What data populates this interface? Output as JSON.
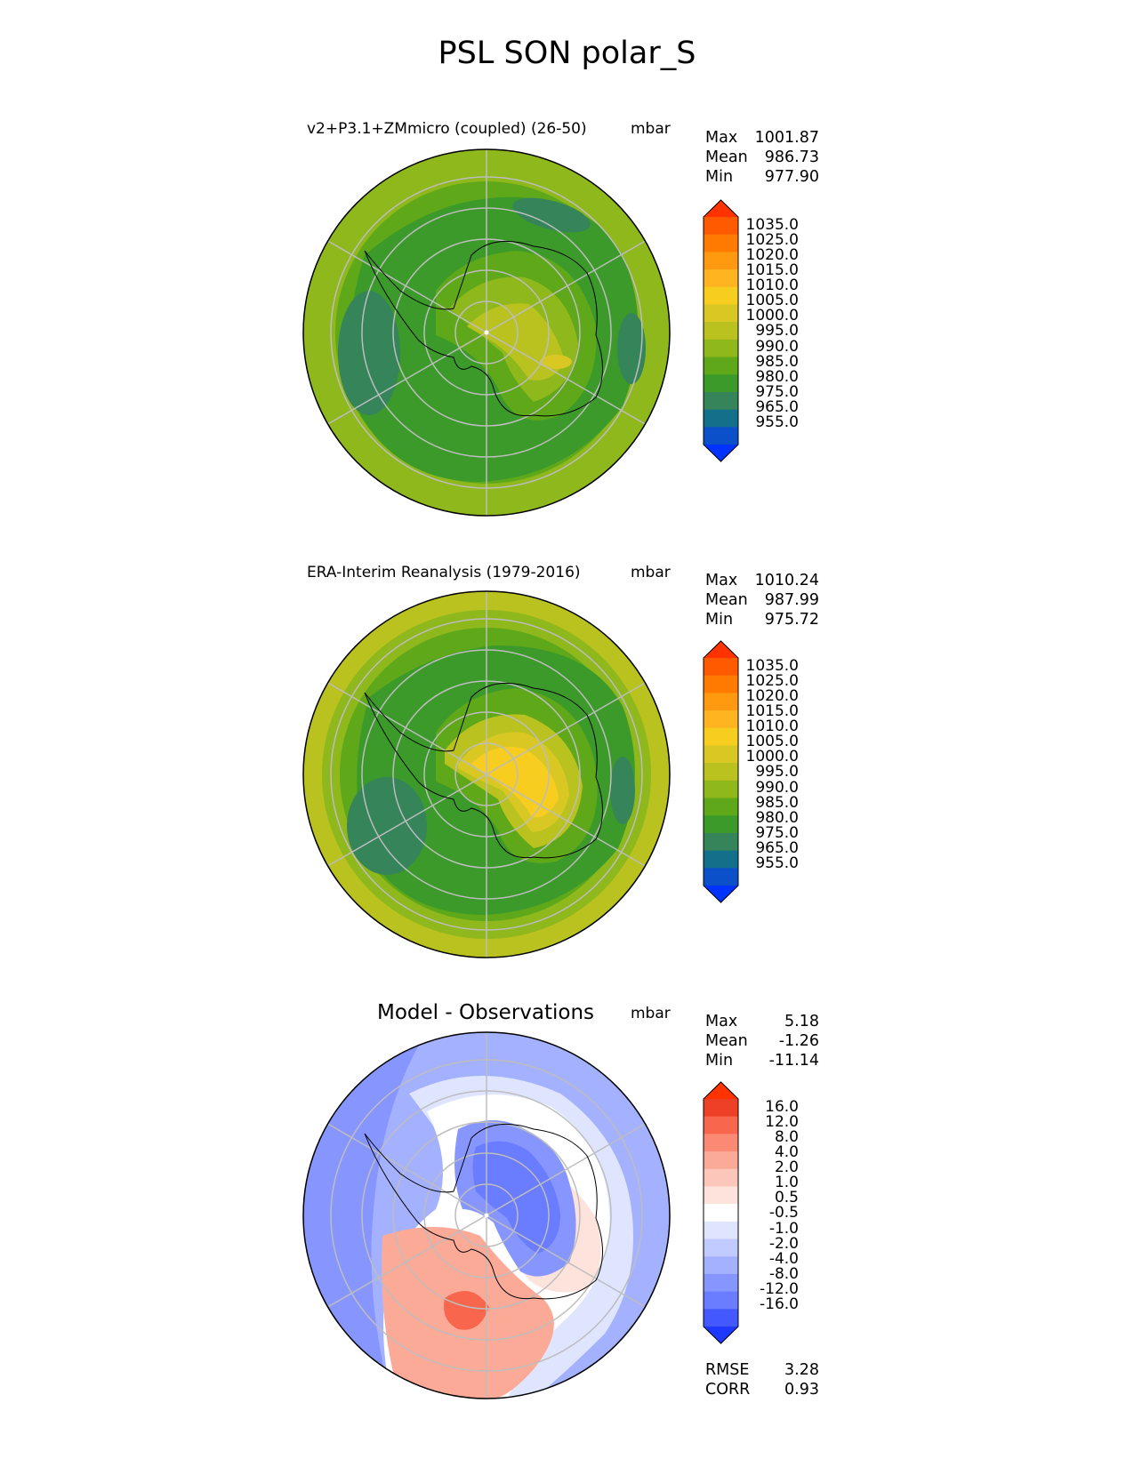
{
  "figure": {
    "title": "PSL SON polar_S"
  },
  "panels": [
    {
      "title": "v2+P3.1+ZMmicro (coupled) (26-50)",
      "units": "mbar",
      "stats": {
        "max_label": "Max",
        "max": "1001.87",
        "mean_label": "Mean",
        "mean": "986.73",
        "min_label": "Min",
        "min": "977.90"
      },
      "colorbar": [
        "1035.0",
        "1025.0",
        "1020.0",
        "1015.0",
        "1010.0",
        "1005.0",
        "1000.0",
        "995.0",
        "990.0",
        "985.0",
        "980.0",
        "975.0",
        "965.0",
        "955.0"
      ]
    },
    {
      "title": "ERA-Interim Reanalysis (1979-2016)",
      "units": "mbar",
      "stats": {
        "max_label": "Max",
        "max": "1010.24",
        "mean_label": "Mean",
        "mean": "987.99",
        "min_label": "Min",
        "min": "975.72"
      },
      "colorbar": [
        "1035.0",
        "1025.0",
        "1020.0",
        "1015.0",
        "1010.0",
        "1005.0",
        "1000.0",
        "995.0",
        "990.0",
        "985.0",
        "980.0",
        "975.0",
        "965.0",
        "955.0"
      ]
    },
    {
      "title": "Model - Observations",
      "units": "mbar",
      "stats": {
        "max_label": "Max",
        "max": "5.18",
        "mean_label": "Mean",
        "mean": "-1.26",
        "min_label": "Min",
        "min": "-11.14"
      },
      "colorbar": [
        "16.0",
        "12.0",
        "8.0",
        "4.0",
        "2.0",
        "1.0",
        "0.5",
        "-0.5",
        "-1.0",
        "-2.0",
        "-4.0",
        "-8.0",
        "-12.0",
        "-16.0"
      ],
      "metrics": {
        "rmse_label": "RMSE",
        "rmse": "3.28",
        "corr_label": "CORR",
        "corr": "0.93"
      }
    }
  ],
  "colors": {
    "psl": [
      "#ff3300",
      "#ff5a00",
      "#ff7a00",
      "#ff9a10",
      "#ffb420",
      "#f7cd20",
      "#d9c824",
      "#b9c21f",
      "#8fb81c",
      "#5fa819",
      "#3c9a2b",
      "#35845a",
      "#12708a",
      "#0b4fc9",
      "#0033ff"
    ],
    "diff": [
      "#ff3300",
      "#ee3f27",
      "#f8664e",
      "#fb8a74",
      "#fcaa98",
      "#fcc7ba",
      "#fde3dc",
      "#ffffff",
      "#dfe5ff",
      "#c1cbff",
      "#a4b1ff",
      "#8796ff",
      "#6a7cff",
      "#4458ff",
      "#1e38ff"
    ]
  }
}
